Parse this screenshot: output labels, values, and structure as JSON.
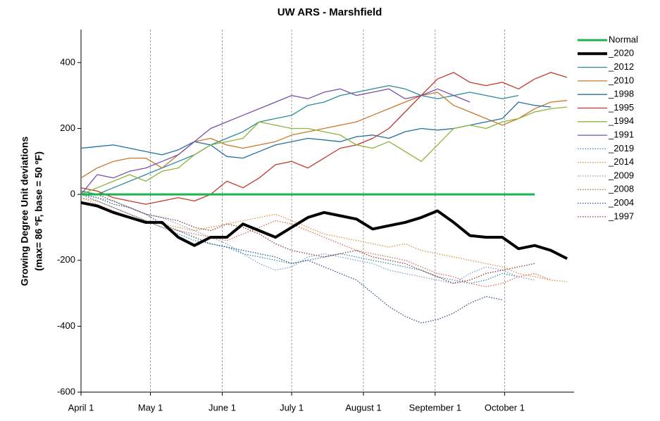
{
  "cropped_text": "al",
  "chart_data": {
    "type": "line",
    "title": "UW ARS - Marshfield",
    "y_label": [
      "Growing Degree Unit deviations",
      "(max= 86 ºF, base = 50 ºF)"
    ],
    "x": [
      0,
      7,
      14,
      21,
      28,
      35,
      42,
      49,
      56,
      63,
      70,
      77,
      84,
      91,
      98,
      105,
      112,
      119,
      126,
      133,
      140,
      147,
      154,
      161,
      168,
      175,
      182,
      189,
      196,
      203,
      210
    ],
    "xlim": [
      0,
      213
    ],
    "xticks": [
      {
        "value": 0,
        "label": "April 1"
      },
      {
        "value": 30,
        "label": "May 1"
      },
      {
        "value": 61,
        "label": "June 1"
      },
      {
        "value": 91,
        "label": "July 1"
      },
      {
        "value": 122,
        "label": "August 1"
      },
      {
        "value": 153,
        "label": "September 1"
      },
      {
        "value": 183,
        "label": "October 1"
      }
    ],
    "ylim": [
      -600,
      500
    ],
    "yticks": [
      -600,
      -400,
      -200,
      0,
      200,
      400
    ],
    "grid": "x",
    "legend": "right",
    "series": [
      {
        "name": "Normal",
        "color": "#1db34f",
        "linewidth": 3,
        "style": "solid",
        "values": [
          0,
          0,
          0,
          0,
          0,
          0,
          0,
          0,
          0,
          0,
          0,
          0,
          0,
          0,
          0,
          0,
          0,
          0,
          0,
          0,
          0,
          0,
          0,
          0,
          0,
          0,
          0,
          0,
          0,
          null,
          null
        ]
      },
      {
        "name": "_2020",
        "color": "#000000",
        "linewidth": 4,
        "style": "solid",
        "values": [
          -25,
          -35,
          -55,
          -70,
          -85,
          -85,
          -130,
          -155,
          -130,
          -130,
          -90,
          -110,
          -130,
          -100,
          -70,
          -55,
          -65,
          -75,
          -105,
          -95,
          -85,
          -70,
          -50,
          -85,
          -125,
          -130,
          -130,
          -165,
          -155,
          -170,
          -195
        ]
      },
      {
        "name": "_2012",
        "color": "#2b8c9a",
        "linewidth": 1.3,
        "style": "solid",
        "values": [
          10,
          0,
          20,
          40,
          60,
          80,
          100,
          120,
          150,
          170,
          190,
          220,
          230,
          240,
          270,
          280,
          300,
          310,
          320,
          330,
          320,
          300,
          290,
          300,
          310,
          300,
          290,
          300,
          null,
          null,
          null
        ]
      },
      {
        "name": "_2010",
        "color": "#c8782c",
        "linewidth": 1.3,
        "style": "solid",
        "values": [
          50,
          80,
          100,
          110,
          110,
          80,
          120,
          160,
          170,
          150,
          140,
          150,
          160,
          180,
          190,
          200,
          210,
          220,
          240,
          260,
          280,
          300,
          310,
          270,
          250,
          230,
          210,
          230,
          260,
          280,
          285
        ]
      },
      {
        "name": "_1998",
        "color": "#21729e",
        "linewidth": 1.3,
        "style": "solid",
        "values": [
          140,
          145,
          150,
          140,
          130,
          120,
          135,
          160,
          150,
          115,
          110,
          130,
          150,
          160,
          170,
          165,
          160,
          175,
          180,
          170,
          190,
          200,
          195,
          200,
          210,
          220,
          230,
          280,
          270,
          265,
          null
        ]
      },
      {
        "name": "_1995",
        "color": "#c0392b",
        "linewidth": 1.3,
        "style": "solid",
        "values": [
          20,
          10,
          -10,
          -20,
          -30,
          -20,
          -10,
          -20,
          0,
          40,
          20,
          50,
          90,
          100,
          80,
          110,
          140,
          150,
          170,
          200,
          250,
          300,
          350,
          370,
          340,
          330,
          340,
          320,
          350,
          370,
          355
        ]
      },
      {
        "name": "_1994",
        "color": "#8db33a",
        "linewidth": 1.3,
        "style": "solid",
        "values": [
          0,
          20,
          40,
          60,
          40,
          70,
          80,
          120,
          150,
          160,
          170,
          220,
          210,
          200,
          200,
          190,
          180,
          150,
          140,
          160,
          130,
          100,
          150,
          200,
          210,
          200,
          220,
          230,
          250,
          260,
          265
        ]
      },
      {
        "name": "_1991",
        "color": "#7b4fa8",
        "linewidth": 1.3,
        "style": "solid",
        "values": [
          0,
          60,
          50,
          70,
          80,
          100,
          120,
          160,
          200,
          220,
          240,
          260,
          280,
          300,
          290,
          310,
          320,
          300,
          310,
          320,
          290,
          300,
          320,
          300,
          280,
          null,
          null,
          null,
          null,
          null,
          null
        ]
      },
      {
        "name": "_2019",
        "color": "#3a8fa8",
        "linewidth": 1.3,
        "style": "dotted",
        "values": [
          0,
          -20,
          -40,
          -60,
          -80,
          -100,
          -120,
          -140,
          -150,
          -160,
          -180,
          -190,
          -200,
          -210,
          -200,
          -190,
          -180,
          -190,
          -200,
          -210,
          -220,
          -230,
          -250,
          -260,
          -270,
          -260,
          -240,
          -250,
          null,
          null,
          null
        ]
      },
      {
        "name": "_2014",
        "color": "#e0913a",
        "linewidth": 1.3,
        "style": "dotted",
        "values": [
          -10,
          -30,
          -50,
          -70,
          -80,
          -90,
          -100,
          -110,
          -100,
          -90,
          -80,
          -70,
          -60,
          -80,
          -100,
          -120,
          -130,
          -140,
          -150,
          -160,
          -150,
          -170,
          -180,
          -190,
          -200,
          -210,
          -220,
          -240,
          -250,
          -260,
          -265
        ]
      },
      {
        "name": "_2009",
        "color": "#7f9fd0",
        "linewidth": 1.3,
        "style": "dotted",
        "values": [
          0,
          -10,
          -20,
          -40,
          -60,
          -70,
          -90,
          -110,
          -130,
          -150,
          -180,
          -210,
          -230,
          -220,
          -190,
          -180,
          -190,
          -200,
          -210,
          -230,
          -240,
          -250,
          -260,
          -270,
          -240,
          -220,
          -230,
          -250,
          -260,
          null,
          null
        ]
      },
      {
        "name": "_2008",
        "color": "#d66a5a",
        "linewidth": 1.3,
        "style": "dotted",
        "values": [
          -10,
          -20,
          -40,
          -60,
          -80,
          -100,
          -110,
          -120,
          -130,
          -140,
          -120,
          -100,
          -80,
          -90,
          -110,
          -130,
          -150,
          -170,
          -180,
          -190,
          -200,
          -220,
          -240,
          -250,
          -270,
          -280,
          -270,
          -250,
          -240,
          -260,
          null
        ]
      },
      {
        "name": "_2004",
        "color": "#2e4f8c",
        "linewidth": 1.3,
        "style": "dotted",
        "values": [
          0,
          -10,
          -30,
          -40,
          -60,
          -90,
          -110,
          -130,
          -150,
          -160,
          -170,
          -180,
          -190,
          -210,
          -200,
          -220,
          -240,
          -260,
          -300,
          -340,
          -370,
          -390,
          -380,
          -360,
          -330,
          -310,
          -320,
          null,
          null,
          null,
          null
        ]
      },
      {
        "name": "_1997",
        "color": "#8b3a3a",
        "linewidth": 1.3,
        "style": "dotted",
        "values": [
          10,
          0,
          -20,
          -40,
          -60,
          -70,
          -80,
          -100,
          -110,
          -90,
          -100,
          -120,
          -150,
          -170,
          -180,
          -190,
          -180,
          -170,
          -190,
          -200,
          -210,
          -230,
          -250,
          -270,
          -260,
          -240,
          -230,
          -220,
          -210,
          null,
          null
        ]
      }
    ]
  }
}
